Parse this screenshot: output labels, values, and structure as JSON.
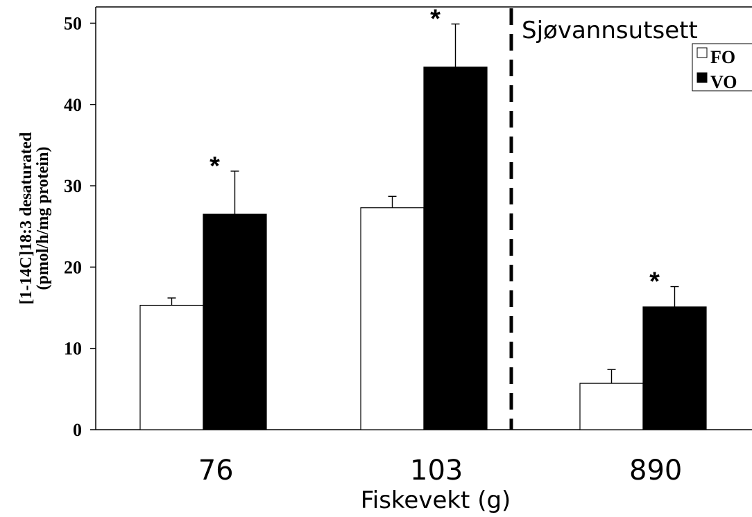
{
  "chart_data": {
    "type": "bar",
    "title": "",
    "xlabel": "Fiskevekt (g)",
    "ylabel": "[1-14C]18:3 desaturated",
    "ylabel_line2": "(pmol/h/mg protein)",
    "categories": [
      "76",
      "103",
      "890"
    ],
    "series": [
      {
        "name": "FO",
        "color": "#ffffff",
        "values": [
          15.3,
          27.3,
          5.7
        ],
        "errors": [
          0.9,
          1.4,
          1.7
        ],
        "significant": [
          false,
          false,
          false
        ]
      },
      {
        "name": "VO",
        "color": "#000000",
        "values": [
          26.5,
          44.6,
          15.1
        ],
        "errors": [
          5.3,
          5.3,
          2.5
        ],
        "significant": [
          true,
          true,
          true
        ]
      }
    ],
    "ylim": [
      0,
      52
    ],
    "yticks": [
      0,
      10,
      20,
      30,
      40,
      50
    ],
    "grid": false,
    "legend_position": "top-right",
    "significance_marker": "*",
    "annotation": "Sjøvannsutsett",
    "divider_after_category": "103"
  }
}
